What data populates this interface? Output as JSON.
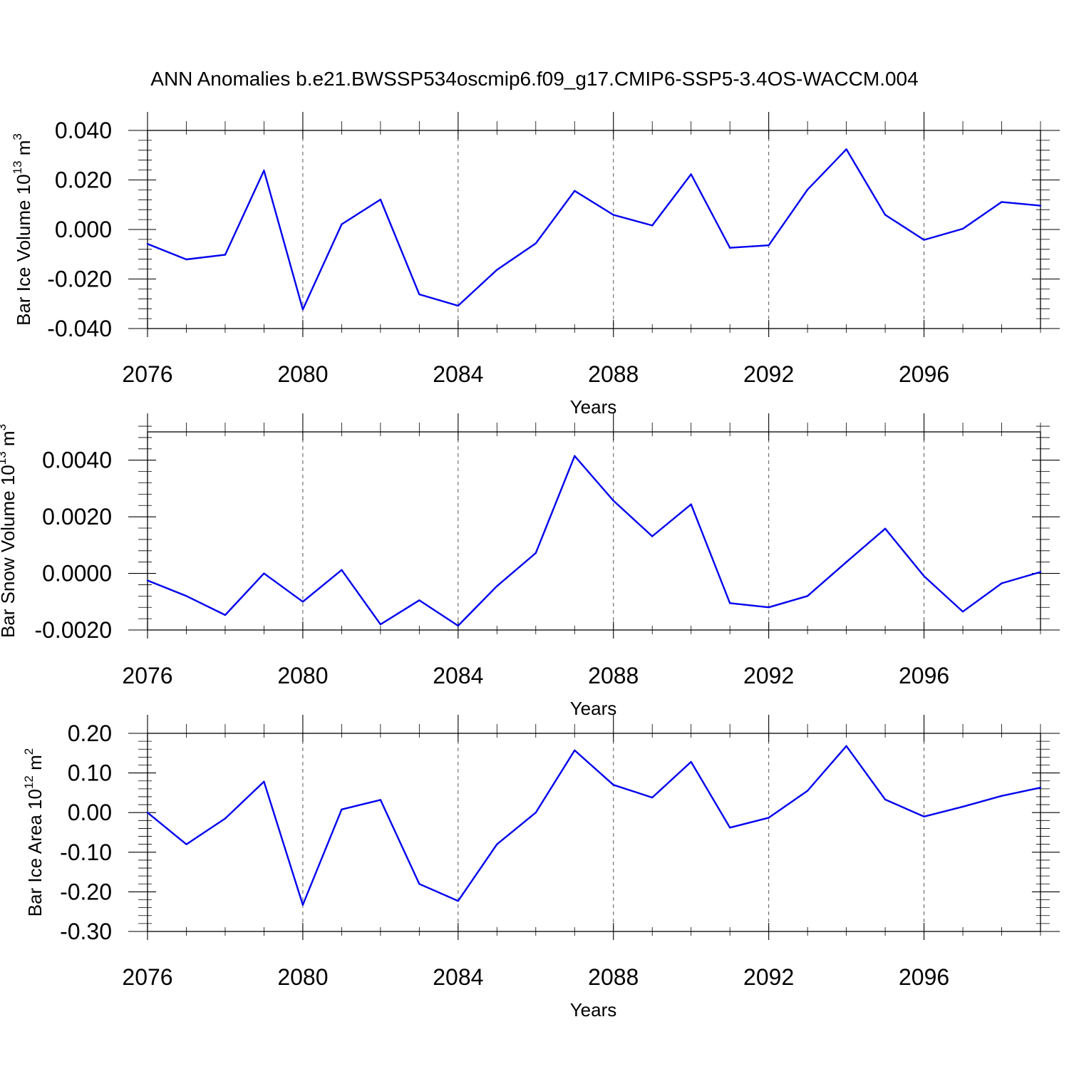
{
  "title": "ANN Anomalies b.e21.BWSSP534oscmip6.f09_g17.CMIP6-SSP5-3.4OS-WACCM.004",
  "line_color": "#0000ee",
  "chart_data": [
    {
      "type": "line",
      "ylabel": "Bar Ice Volume 10",
      "ylabel_exp": "13",
      "ylabel_unit": " m",
      "ylabel_unit_exp": "3",
      "xlabel": "Years",
      "xlim": [
        2076,
        2099
      ],
      "ylim": [
        -0.04,
        0.04
      ],
      "xticks": [
        "2076",
        "2080",
        "2084",
        "2088",
        "2092",
        "2096"
      ],
      "yticks": [
        "0.040",
        "0.020",
        "0.000",
        "-0.020",
        "-0.040"
      ],
      "x": [
        2076,
        2077,
        2078,
        2079,
        2080,
        2081,
        2082,
        2083,
        2084,
        2085,
        2086,
        2087,
        2088,
        2089,
        2090,
        2091,
        2092,
        2093,
        2094,
        2095,
        2096,
        2097,
        2098,
        2099
      ],
      "values": [
        -0.0058,
        -0.0121,
        -0.0102,
        0.0238,
        -0.0323,
        0.0021,
        0.0121,
        -0.0262,
        -0.0308,
        -0.0163,
        -0.0056,
        0.0156,
        0.0059,
        0.0016,
        0.0223,
        -0.0074,
        -0.0064,
        0.0161,
        0.0324,
        0.0059,
        -0.0042,
        0.0003,
        0.0111,
        0.0096
      ]
    },
    {
      "type": "line",
      "ylabel": "Bar Snow Volume 10",
      "ylabel_exp": "13",
      "ylabel_unit": " m",
      "ylabel_unit_exp": "3",
      "xlabel": "Years",
      "xlim": [
        2076,
        2099
      ],
      "ylim": [
        -0.002,
        0.005
      ],
      "xticks": [
        "2076",
        "2080",
        "2084",
        "2088",
        "2092",
        "2096"
      ],
      "yticks": [
        "0.0040",
        "0.0020",
        "0.0000",
        "-0.0020"
      ],
      "x": [
        2076,
        2077,
        2078,
        2079,
        2080,
        2081,
        2082,
        2083,
        2084,
        2085,
        2086,
        2087,
        2088,
        2089,
        2090,
        2091,
        2092,
        2093,
        2094,
        2095,
        2096,
        2097,
        2098,
        2099
      ],
      "values": [
        -0.00025,
        -0.0008,
        -0.00147,
        0.0,
        -0.001,
        0.00012,
        -0.0018,
        -0.00095,
        -0.00185,
        -0.00045,
        0.00072,
        0.00415,
        0.00257,
        0.00131,
        0.00244,
        -0.00105,
        -0.0012,
        -0.0008,
        0.0004,
        0.00158,
        -0.0001,
        -0.00135,
        -0.00035,
        5e-05
      ]
    },
    {
      "type": "line",
      "ylabel": "Bar Ice Area 10",
      "ylabel_exp": "12",
      "ylabel_unit": " m",
      "ylabel_unit_exp": "2",
      "xlabel": "Years",
      "xlim": [
        2076,
        2099
      ],
      "ylim": [
        -0.3,
        0.2
      ],
      "xticks": [
        "2076",
        "2080",
        "2084",
        "2088",
        "2092",
        "2096"
      ],
      "yticks": [
        "0.20",
        "0.10",
        "0.00",
        "-0.10",
        "-0.20",
        "-0.30"
      ],
      "x": [
        2076,
        2077,
        2078,
        2079,
        2080,
        2081,
        2082,
        2083,
        2084,
        2085,
        2086,
        2087,
        2088,
        2089,
        2090,
        2091,
        2092,
        2093,
        2094,
        2095,
        2096,
        2097,
        2098,
        2099
      ],
      "values": [
        0.0,
        -0.08,
        -0.015,
        0.078,
        -0.233,
        0.008,
        0.032,
        -0.18,
        -0.223,
        -0.08,
        0.0,
        0.157,
        0.07,
        0.038,
        0.128,
        -0.038,
        -0.013,
        0.055,
        0.168,
        0.033,
        -0.01,
        0.015,
        0.042,
        0.063
      ]
    }
  ]
}
